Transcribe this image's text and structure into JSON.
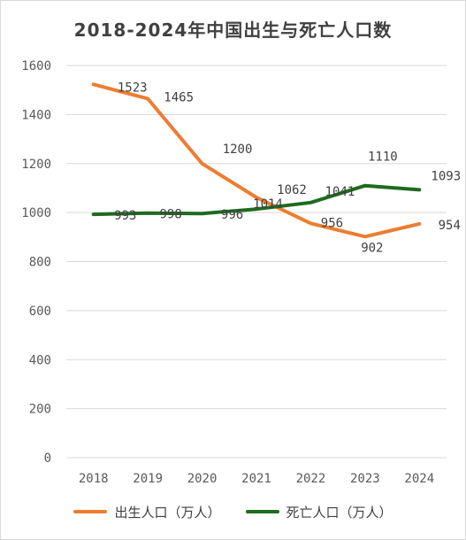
{
  "chart_data": {
    "type": "line",
    "title": "2018-2024年中国出生与死亡人口数",
    "x": [
      "2018",
      "2019",
      "2020",
      "2021",
      "2022",
      "2023",
      "2024"
    ],
    "yticks": [
      "0",
      "200",
      "400",
      "600",
      "800",
      "1000",
      "1200",
      "1400",
      "1600"
    ],
    "ylim": [
      0,
      1600
    ],
    "grid": true,
    "legend_position": "bottom",
    "series": [
      {
        "name": "出生人口（万人）",
        "color": "#ED7D31",
        "values": [
          1523,
          1465,
          1200,
          1062,
          956,
          902,
          954
        ],
        "labels": [
          "1523",
          "1465",
          "1200",
          "1062",
          "956",
          "902",
          "954"
        ]
      },
      {
        "name": "死亡人口（万人）",
        "color": "#1E6B1E",
        "values": [
          993,
          998,
          996,
          1014,
          1041,
          1110,
          1093
        ],
        "labels": [
          "993",
          "998",
          "996",
          "1014",
          "1041",
          "1110",
          "1093"
        ]
      }
    ]
  }
}
